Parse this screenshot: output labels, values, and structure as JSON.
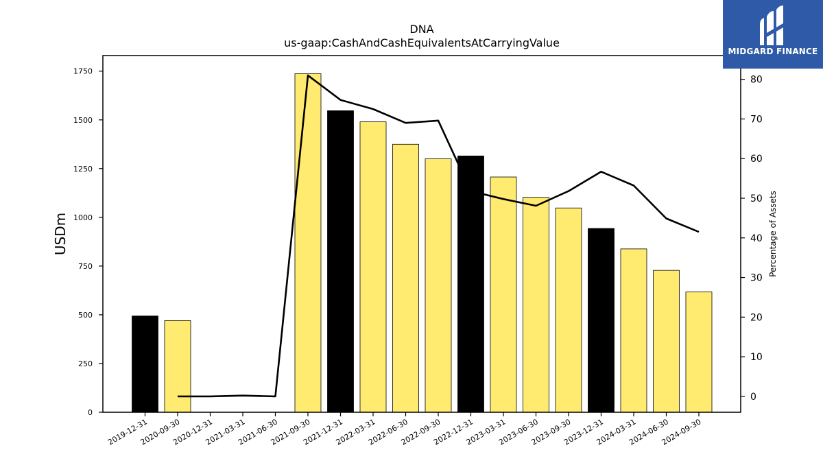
{
  "title": "DNA",
  "subtitle": "us-gaap:CashAndCashEquivalentsAtCarryingValue",
  "logo": {
    "text": "MIDGARD FINANCE",
    "icon": "midgard-logo-icon",
    "background": "#2f5aa8"
  },
  "colors": {
    "bar_default": "#ffeb70",
    "bar_highlight": "#000000",
    "line": "#000000"
  },
  "chart_data": {
    "type": "bar",
    "categories": [
      "2019-12-31",
      "2020-09-30",
      "2020-12-31",
      "2021-03-31",
      "2021-06-30",
      "2021-09-30",
      "2021-12-31",
      "2022-03-31",
      "2022-06-30",
      "2022-09-30",
      "2022-12-31",
      "2023-03-31",
      "2023-06-30",
      "2023-09-30",
      "2023-12-31",
      "2024-03-31",
      "2024-06-30",
      "2024-09-30"
    ],
    "series": [
      {
        "axis": "left",
        "kind": "bar",
        "values": [
          494,
          470,
          0,
          0,
          0,
          1737,
          1547,
          1490,
          1375,
          1300,
          1315,
          1207,
          1103,
          1048,
          943,
          838,
          728,
          617
        ],
        "highlight": [
          true,
          false,
          false,
          false,
          false,
          false,
          true,
          false,
          false,
          false,
          true,
          false,
          false,
          false,
          true,
          false,
          false,
          false
        ]
      },
      {
        "axis": "right",
        "kind": "line",
        "values": [
          null,
          0.0,
          0.0,
          0.2,
          0.0,
          81.0,
          74.8,
          72.5,
          69.0,
          69.6,
          51.8,
          49.8,
          48.1,
          51.8,
          56.7,
          53.2,
          44.9,
          41.5
        ]
      }
    ],
    "ylabel": "USDm",
    "y2label": "Percentage of Assets",
    "ylim": [
      0,
      1830
    ],
    "y2lim": [
      -4,
      86
    ],
    "yticks": [
      0,
      250,
      500,
      750,
      1000,
      1250,
      1500,
      1750
    ],
    "y2ticks": [
      0,
      10,
      20,
      30,
      40,
      50,
      60,
      70,
      80
    ],
    "grid": false,
    "legend": "none"
  }
}
